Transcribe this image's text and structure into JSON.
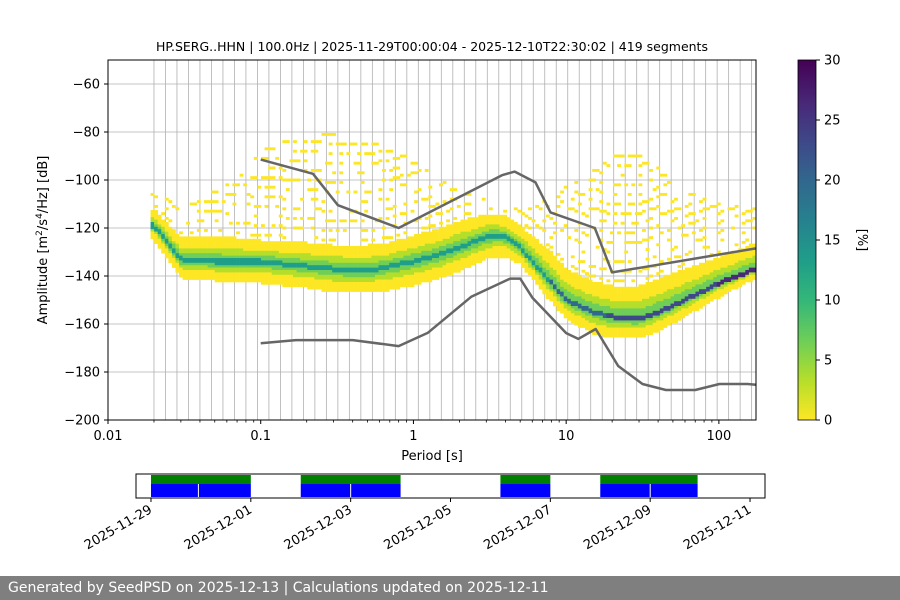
{
  "chart_data": {
    "type": "heatmap",
    "title": "HP.SERG..HHN | 100.0Hz | 2025-11-29T00:00:04 - 2025-12-10T22:30:02 | 419 segments",
    "xlabel": "Period [s]",
    "ylabel_prefix": "Amplitude [m",
    "ylabel_mid": "/s",
    "ylabel_suffix": "/Hz] [dB]",
    "ylabel_sup1": "2",
    "ylabel_sup2": "4",
    "x_scale": "log",
    "xlim": [
      0.01,
      175
    ],
    "ylim": [
      -200,
      -50
    ],
    "xticks": [
      0.01,
      0.1,
      1,
      10,
      100
    ],
    "xtick_labels": [
      "0.01",
      "0.1",
      "1",
      "10",
      "100"
    ],
    "yticks": [
      -200,
      -180,
      -160,
      -140,
      -120,
      -100,
      -80,
      -60
    ],
    "ytick_labels": [
      "−200",
      "−180",
      "−160",
      "−140",
      "−120",
      "−100",
      "−80",
      "−60"
    ],
    "grid": "vertical at period bins",
    "psd_mode": {
      "period": [
        0.02,
        0.03,
        0.05,
        0.1,
        0.2,
        0.3,
        0.5,
        0.7,
        1,
        1.5,
        2,
        3,
        3.5,
        4,
        5,
        6,
        8,
        10,
        15,
        20,
        30,
        40,
        60,
        100,
        175
      ],
      "db": [
        -119,
        -133,
        -134,
        -134,
        -136,
        -137,
        -138,
        -136,
        -134,
        -131,
        -128,
        -124,
        -123,
        -124,
        -128,
        -134,
        -143,
        -150,
        -155,
        -157,
        -158,
        -155,
        -150,
        -143,
        -137
      ]
    },
    "psd_low": {
      "period": [
        0.02,
        0.03,
        0.05,
        0.1,
        0.2,
        0.3,
        0.5,
        0.7,
        1,
        1.5,
        2,
        3,
        4,
        5,
        6,
        8,
        10,
        15,
        20,
        30,
        40,
        60,
        100,
        175
      ],
      "db": [
        -113,
        -125,
        -124,
        -126,
        -127,
        -128,
        -128,
        -127,
        -124,
        -121,
        -118,
        -115,
        -116,
        -120,
        -124,
        -131,
        -138,
        -143,
        -145,
        -145,
        -142,
        -138,
        -133,
        -127
      ]
    },
    "psd_high": {
      "period": [
        0.02,
        0.03,
        0.05,
        0.1,
        0.2,
        0.3,
        0.5,
        0.7,
        1,
        1.5,
        2,
        3,
        4,
        5,
        6,
        8,
        10,
        15,
        20,
        30,
        40,
        60,
        100,
        175
      ],
      "db": [
        -124,
        -140,
        -141,
        -142,
        -144,
        -146,
        -146,
        -145,
        -143,
        -140,
        -137,
        -132,
        -131,
        -134,
        -140,
        -150,
        -157,
        -163,
        -165,
        -165,
        -162,
        -156,
        -148,
        -140
      ]
    },
    "outliers": {
      "period": [
        0.02,
        0.03,
        0.05,
        0.08,
        0.1,
        0.15,
        0.25,
        0.4,
        0.6,
        0.8,
        1,
        2,
        3,
        5,
        8,
        10,
        15,
        20,
        25,
        30,
        40,
        60,
        100,
        175
      ],
      "db": [
        -104,
        -112,
        -104,
        -96,
        -88,
        -82,
        -80,
        -82,
        -84,
        -88,
        -92,
        -104,
        -108,
        -112,
        -108,
        -102,
        -96,
        -90,
        -88,
        -89,
        -94,
        -104,
        -110,
        -112
      ]
    },
    "nhnm": {
      "period": [
        0.1,
        0.22,
        0.32,
        0.8,
        3.8,
        4.6,
        6.3,
        7.9,
        15.4,
        20,
        175
      ],
      "db": [
        -91.5,
        -97.4,
        -110.5,
        -120,
        -98,
        -96.5,
        -101,
        -113.5,
        -120,
        -138.5,
        -128.5
      ]
    },
    "nlnm": {
      "period": [
        0.1,
        0.17,
        0.4,
        0.8,
        1.24,
        2.4,
        4.3,
        5,
        6,
        10,
        12,
        15.6,
        21.9,
        31.6,
        45,
        70,
        101,
        154,
        175
      ],
      "db": [
        -168,
        -166.7,
        -166.7,
        -169.2,
        -163.7,
        -148.6,
        -141.1,
        -141.1,
        -149,
        -163.8,
        -166.2,
        -162.1,
        -177.5,
        -185,
        -187.5,
        -187.5,
        -185,
        -185,
        -185.3
      ]
    },
    "colorbar": {
      "label": "[%]",
      "min": 0,
      "max": 30,
      "ticks": [
        0,
        5,
        10,
        15,
        20,
        25,
        30
      ],
      "tick_labels": [
        "0",
        "5",
        "10",
        "15",
        "20",
        "25",
        "30"
      ]
    },
    "timeline": {
      "start": "2025-11-29",
      "end": "2025-12-11",
      "date_labels": [
        "2025-11-29",
        "2025-12-01",
        "2025-12-03",
        "2025-12-05",
        "2025-12-07",
        "2025-12-09",
        "2025-12-11"
      ],
      "date_ticks_day": [
        0,
        2,
        4,
        6,
        8,
        10,
        12
      ],
      "day_min": -0.3,
      "day_max": 12.3,
      "data_intervals_day": [
        [
          0.0,
          2.0
        ],
        [
          3.0,
          5.0
        ],
        [
          7.0,
          8.0
        ],
        [
          9.0,
          10.95
        ]
      ],
      "data_separators_day": [
        0.95,
        4.0,
        10.0
      ],
      "availability_color": "#0000ff",
      "coverage_color": "#008000"
    },
    "colors": {
      "noise_model": "#666666",
      "grid": "#b0b0b0",
      "cmap": [
        "#fde725",
        "#b5de2b",
        "#6ece58",
        "#35b779",
        "#1f9e89",
        "#26828e",
        "#31688e",
        "#3e4989",
        "#482878",
        "#440154"
      ]
    }
  },
  "footer": {
    "text": "Generated by SeedPSD on 2025-12-13 | Calculations updated on 2025-12-11",
    "background": "#7f7f7f"
  }
}
